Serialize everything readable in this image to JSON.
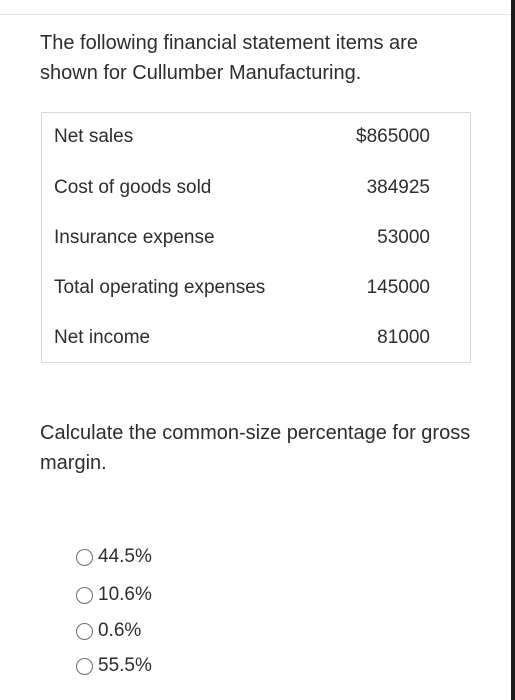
{
  "question": {
    "text": "The following financial statement items are shown for Cullumber Manufacturing."
  },
  "table": {
    "rows": [
      {
        "label": "Net sales",
        "value": "$865000"
      },
      {
        "label": "Cost of goods sold",
        "value": "384925"
      },
      {
        "label": "Insurance expense",
        "value": "53000"
      },
      {
        "label": "Total operating expenses",
        "value": "145000"
      },
      {
        "label": "Net income",
        "value": "81000"
      }
    ]
  },
  "prompt": {
    "text": "Calculate the common-size percentage for gross margin."
  },
  "options": [
    {
      "label": "44.5%",
      "selected": false
    },
    {
      "label": "10.6%",
      "selected": false
    },
    {
      "label": "0.6%",
      "selected": false
    },
    {
      "label": "55.5%",
      "selected": false
    }
  ]
}
